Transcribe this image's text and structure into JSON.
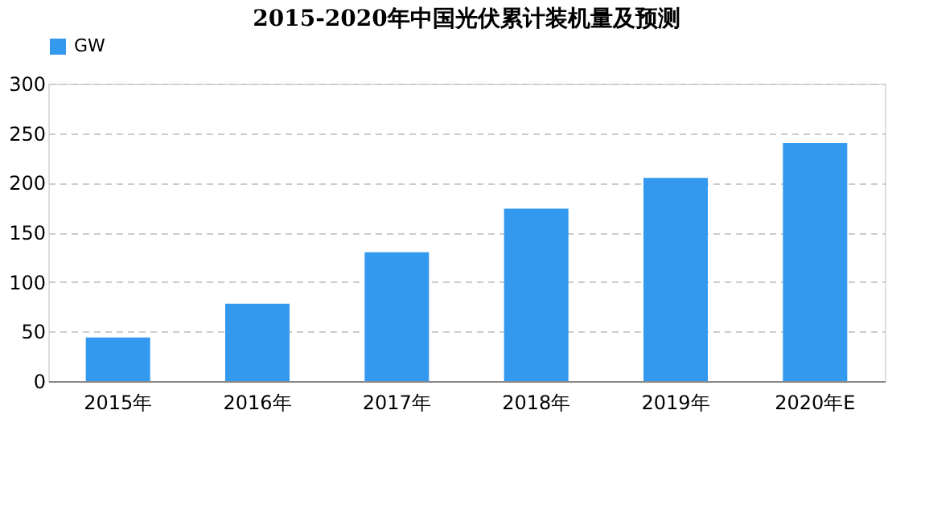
{
  "chart_data": {
    "type": "bar",
    "title": "2015-2020年中国光伏累计装机量及预测",
    "categories": [
      "2015年",
      "2016年",
      "2017年",
      "2018年",
      "2019年",
      "2020年E"
    ],
    "series": [
      {
        "name": "GW",
        "color": "#3399ee",
        "values": [
          44,
          78,
          130,
          174,
          205,
          240
        ]
      }
    ],
    "ylim": [
      0,
      300
    ],
    "yticks": [
      0,
      50,
      100,
      150,
      200,
      250,
      300
    ],
    "grid": "y",
    "legend": "top"
  }
}
